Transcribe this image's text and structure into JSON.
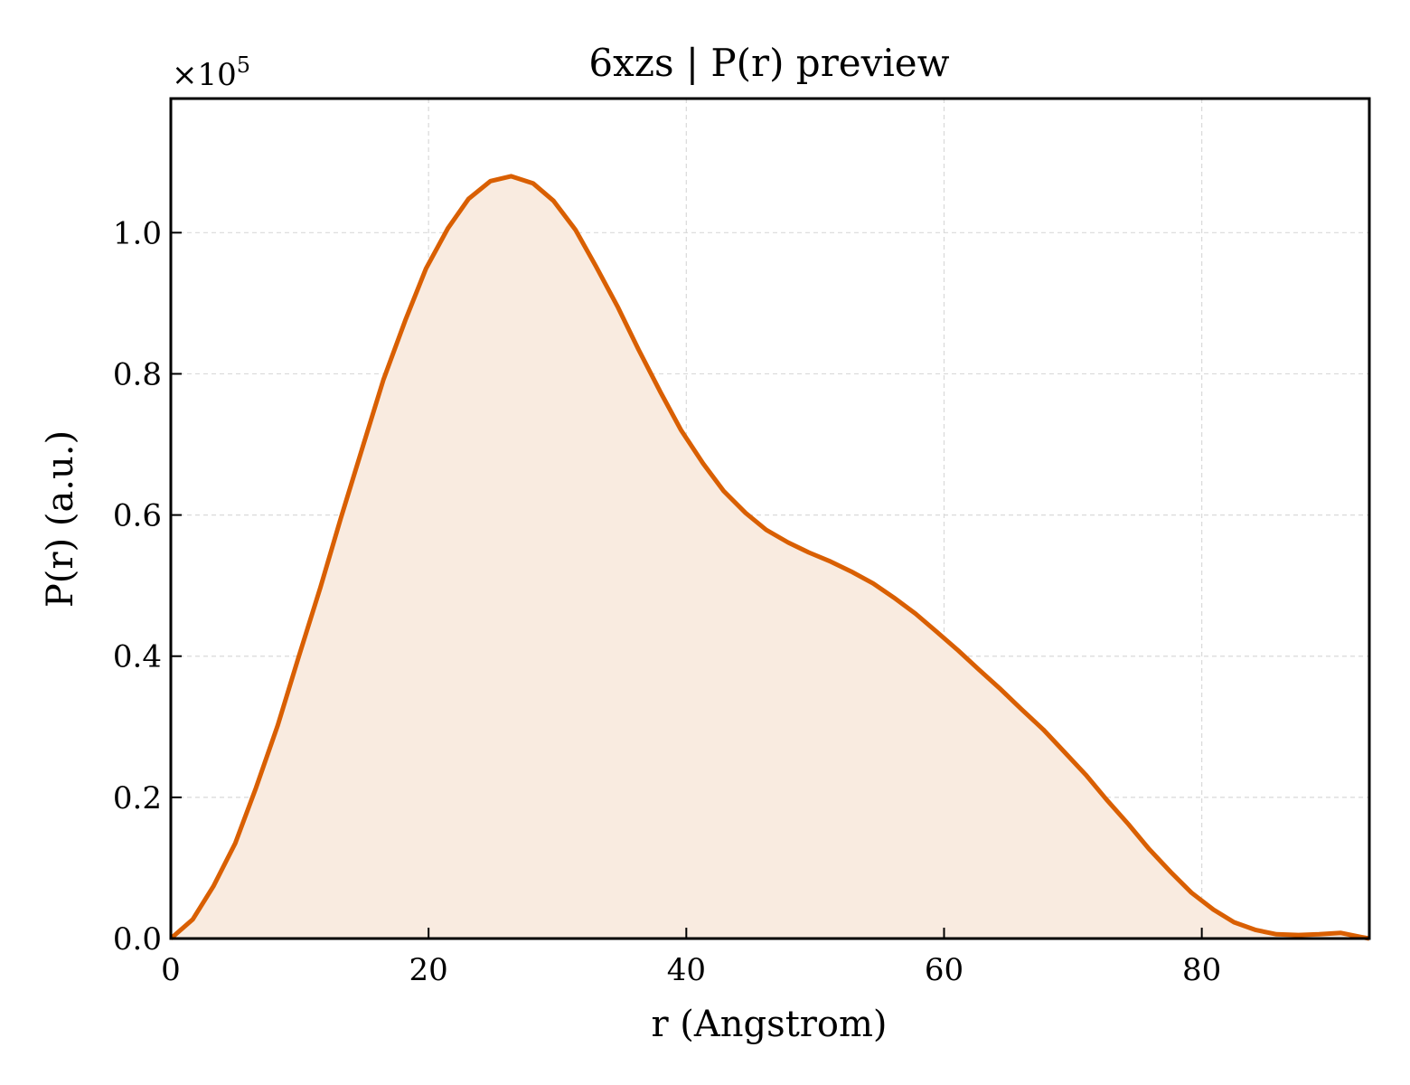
{
  "chart_data": {
    "type": "area",
    "title": "6xzs | P(r) preview",
    "xlabel": "r (Angstrom)",
    "ylabel": "P(r) (a.u.)",
    "y_multiplier": "×10",
    "y_multiplier_exp": "5",
    "xlim": [
      0,
      93
    ],
    "ylim": [
      0,
      1.19
    ],
    "xticks": [
      0,
      20,
      40,
      60,
      80
    ],
    "xtick_labels": [
      "0",
      "20",
      "40",
      "60",
      "80"
    ],
    "yticks": [
      0,
      0.2,
      0.4,
      0.6,
      0.8,
      1.0
    ],
    "ytick_labels": [
      "0.0",
      "0.2",
      "0.4",
      "0.6",
      "0.8",
      "1.0"
    ],
    "grid": true,
    "line_color": "#d95f02",
    "fill_color": "#f9ebe0",
    "series": [
      {
        "x": [
          0,
          1.7,
          3.3,
          5.0,
          6.6,
          8.3,
          9.9,
          11.6,
          13.2,
          14.9,
          16.5,
          18.2,
          19.8,
          21.5,
          23.1,
          24.8,
          26.4,
          28.1,
          29.7,
          31.4,
          33.0,
          34.7,
          36.3,
          38.0,
          39.6,
          41.3,
          42.9,
          44.6,
          46.2,
          47.9,
          49.5,
          51.2,
          52.8,
          54.5,
          56.1,
          57.8,
          59.4,
          61.1,
          62.7,
          64.4,
          66.0,
          67.7,
          69.3,
          71.0,
          72.6,
          74.3,
          75.9,
          77.6,
          79.2,
          80.9,
          82.5,
          84.2,
          85.8,
          87.5,
          89.1,
          90.8,
          92.4,
          93.0
        ],
        "y": [
          0.0,
          0.027,
          0.074,
          0.135,
          0.213,
          0.302,
          0.398,
          0.497,
          0.596,
          0.697,
          0.792,
          0.876,
          0.949,
          1.006,
          1.048,
          1.073,
          1.08,
          1.07,
          1.045,
          1.004,
          0.952,
          0.894,
          0.834,
          0.774,
          0.72,
          0.673,
          0.634,
          0.603,
          0.579,
          0.561,
          0.547,
          0.534,
          0.52,
          0.503,
          0.483,
          0.46,
          0.435,
          0.408,
          0.381,
          0.353,
          0.325,
          0.296,
          0.265,
          0.232,
          0.197,
          0.162,
          0.127,
          0.094,
          0.065,
          0.041,
          0.023,
          0.012,
          0.006,
          0.005,
          0.006,
          0.008,
          0.002,
          0.0
        ]
      }
    ]
  }
}
